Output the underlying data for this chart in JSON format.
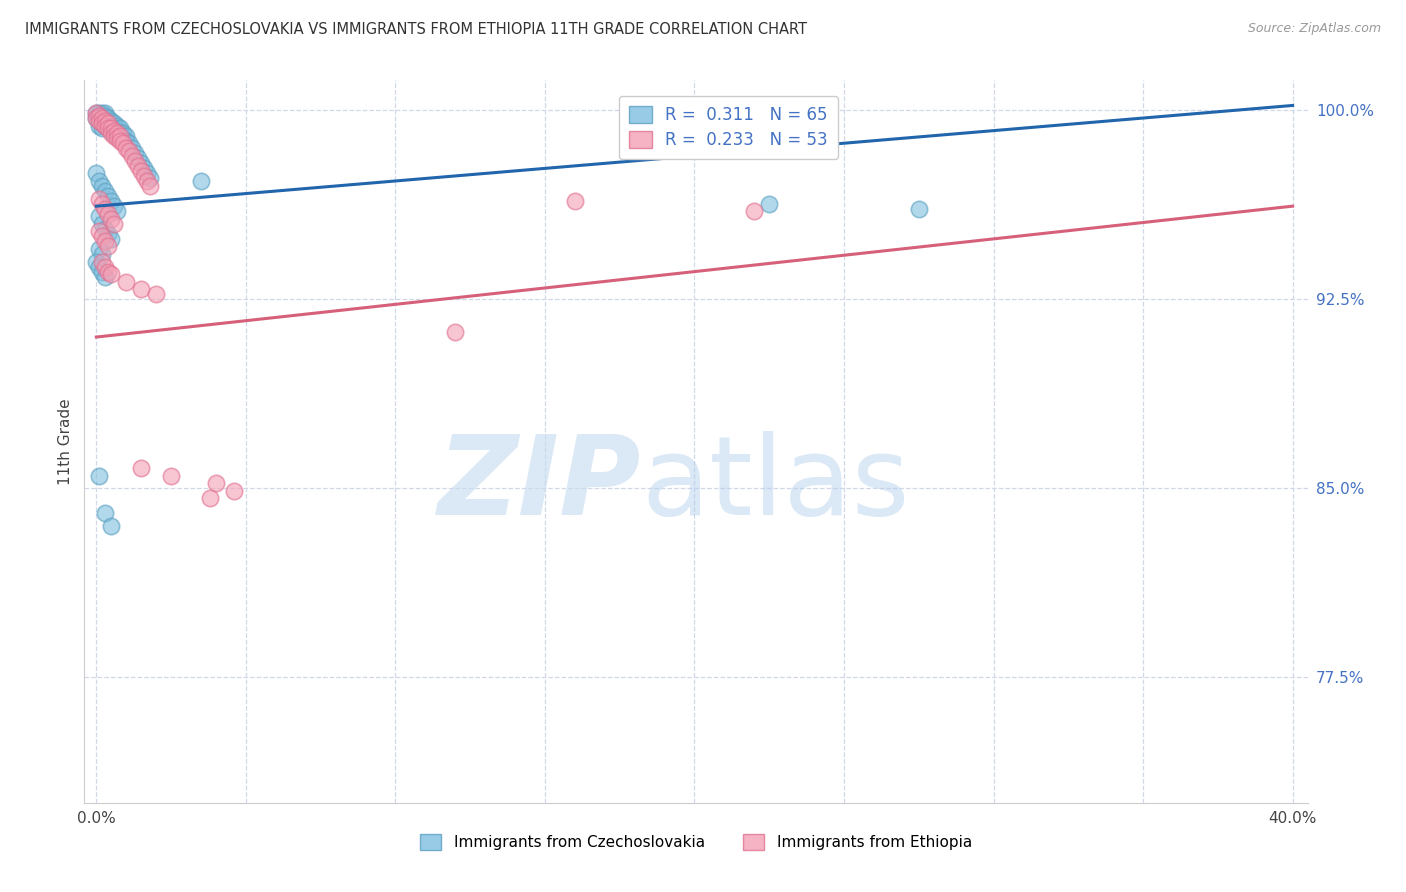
{
  "title": "IMMIGRANTS FROM CZECHOSLOVAKIA VS IMMIGRANTS FROM ETHIOPIA 11TH GRADE CORRELATION CHART",
  "source": "Source: ZipAtlas.com",
  "ylabel": "11th Grade",
  "xlim": [
    -0.004,
    0.405
  ],
  "ylim": [
    0.725,
    1.012
  ],
  "ytick_positions": [
    0.775,
    0.85,
    0.925,
    1.0
  ],
  "ytick_labels": [
    "77.5%",
    "85.0%",
    "92.5%",
    "100.0%"
  ],
  "xtick_positions": [
    0.0,
    0.05,
    0.1,
    0.15,
    0.2,
    0.25,
    0.3,
    0.35,
    0.4
  ],
  "xtick_labels": [
    "0.0%",
    "",
    "",
    "",
    "",
    "",
    "",
    "",
    "40.0%"
  ],
  "legend_blue_label": "R =  0.311   N = 65",
  "legend_pink_label": "R =  0.233   N = 53",
  "legend_czech_label": "Immigrants from Czechoslovakia",
  "legend_ethiopia_label": "Immigrants from Ethiopia",
  "blue_color": "#7fbfdf",
  "pink_color": "#f4a0b5",
  "blue_edge_color": "#5a9fc0",
  "pink_edge_color": "#e07090",
  "blue_line_color": "#2166ac",
  "pink_line_color": "#d6607a",
  "grid_color": "#d0d8e8",
  "blue_trend": [
    0.0,
    0.4,
    0.962,
    1.002
  ],
  "pink_trend": [
    0.0,
    0.4,
    0.91,
    0.962
  ],
  "blue_x": [
    0.0,
    0.0,
    0.001,
    0.001,
    0.001,
    0.001,
    0.002,
    0.002,
    0.002,
    0.002,
    0.003,
    0.003,
    0.003,
    0.003,
    0.004,
    0.004,
    0.004,
    0.005,
    0.005,
    0.005,
    0.006,
    0.006,
    0.006,
    0.007,
    0.007,
    0.007,
    0.008,
    0.008,
    0.009,
    0.009,
    0.01,
    0.01,
    0.011,
    0.012,
    0.013,
    0.014,
    0.015,
    0.016,
    0.017,
    0.018,
    0.0,
    0.001,
    0.002,
    0.003,
    0.004,
    0.005,
    0.006,
    0.007,
    0.001,
    0.002,
    0.003,
    0.004,
    0.005,
    0.001,
    0.002,
    0.035,
    0.0,
    0.001,
    0.002,
    0.003,
    0.225,
    0.275,
    0.001,
    0.003,
    0.005
  ],
  "blue_y": [
    0.999,
    0.997,
    0.999,
    0.998,
    0.996,
    0.994,
    0.999,
    0.997,
    0.995,
    0.993,
    0.999,
    0.998,
    0.996,
    0.994,
    0.997,
    0.995,
    0.993,
    0.996,
    0.994,
    0.992,
    0.995,
    0.993,
    0.991,
    0.994,
    0.992,
    0.99,
    0.993,
    0.991,
    0.991,
    0.989,
    0.99,
    0.988,
    0.987,
    0.985,
    0.983,
    0.981,
    0.979,
    0.977,
    0.975,
    0.973,
    0.975,
    0.972,
    0.97,
    0.968,
    0.966,
    0.964,
    0.962,
    0.96,
    0.958,
    0.955,
    0.953,
    0.951,
    0.949,
    0.945,
    0.943,
    0.972,
    0.94,
    0.938,
    0.936,
    0.934,
    0.963,
    0.961,
    0.855,
    0.84,
    0.835
  ],
  "pink_x": [
    0.0,
    0.0,
    0.001,
    0.001,
    0.002,
    0.002,
    0.003,
    0.003,
    0.004,
    0.004,
    0.005,
    0.005,
    0.006,
    0.006,
    0.007,
    0.007,
    0.008,
    0.008,
    0.009,
    0.01,
    0.011,
    0.012,
    0.013,
    0.014,
    0.015,
    0.016,
    0.017,
    0.018,
    0.001,
    0.002,
    0.003,
    0.004,
    0.005,
    0.006,
    0.001,
    0.002,
    0.003,
    0.004,
    0.002,
    0.003,
    0.004,
    0.005,
    0.01,
    0.015,
    0.02,
    0.16,
    0.22,
    0.12,
    0.015,
    0.025,
    0.04,
    0.046,
    0.038
  ],
  "pink_y": [
    0.999,
    0.997,
    0.998,
    0.996,
    0.997,
    0.995,
    0.996,
    0.994,
    0.995,
    0.993,
    0.993,
    0.991,
    0.992,
    0.99,
    0.991,
    0.989,
    0.99,
    0.988,
    0.987,
    0.985,
    0.984,
    0.982,
    0.98,
    0.978,
    0.976,
    0.974,
    0.972,
    0.97,
    0.965,
    0.963,
    0.961,
    0.959,
    0.957,
    0.955,
    0.952,
    0.95,
    0.948,
    0.946,
    0.94,
    0.938,
    0.936,
    0.935,
    0.932,
    0.929,
    0.927,
    0.964,
    0.96,
    0.912,
    0.858,
    0.855,
    0.852,
    0.849,
    0.846
  ]
}
